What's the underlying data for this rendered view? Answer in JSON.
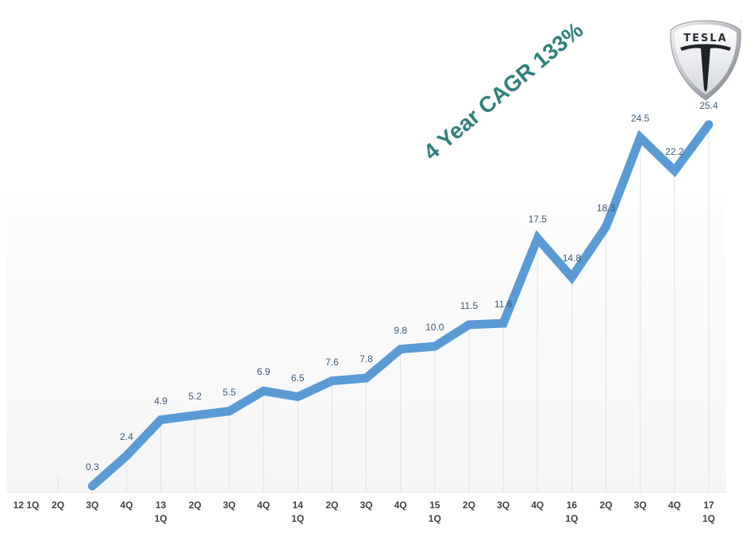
{
  "chart_data": {
    "type": "line",
    "title": "",
    "annotation": "4 Year CAGR 133%",
    "xlabel": "",
    "ylabel": "",
    "grid": "vertical",
    "legend": "none",
    "categories": [
      "12 1Q",
      "2Q",
      "3Q",
      "4Q",
      "13 1Q",
      "2Q",
      "3Q",
      "4Q",
      "14 1Q",
      "2Q",
      "3Q",
      "4Q",
      "15 1Q",
      "2Q",
      "3Q",
      "4Q",
      "16 1Q",
      "2Q",
      "3Q",
      "4Q",
      "17 1Q"
    ],
    "tick_labels": [
      {
        "top": "12 1Q",
        "bottom": ""
      },
      {
        "top": "2Q",
        "bottom": ""
      },
      {
        "top": "3Q",
        "bottom": ""
      },
      {
        "top": "4Q",
        "bottom": ""
      },
      {
        "top": "13",
        "bottom": "1Q"
      },
      {
        "top": "2Q",
        "bottom": ""
      },
      {
        "top": "3Q",
        "bottom": ""
      },
      {
        "top": "4Q",
        "bottom": ""
      },
      {
        "top": "14",
        "bottom": "1Q"
      },
      {
        "top": "2Q",
        "bottom": ""
      },
      {
        "top": "3Q",
        "bottom": ""
      },
      {
        "top": "4Q",
        "bottom": ""
      },
      {
        "top": "15",
        "bottom": "1Q"
      },
      {
        "top": "2Q",
        "bottom": ""
      },
      {
        "top": "3Q",
        "bottom": ""
      },
      {
        "top": "4Q",
        "bottom": ""
      },
      {
        "top": "16",
        "bottom": "1Q"
      },
      {
        "top": "2Q",
        "bottom": ""
      },
      {
        "top": "3Q",
        "bottom": ""
      },
      {
        "top": "4Q",
        "bottom": ""
      },
      {
        "top": "17",
        "bottom": "1Q"
      }
    ],
    "series": [
      {
        "name": "Tesla",
        "color": "#5b9bd5",
        "values": [
          null,
          null,
          0.3,
          2.4,
          4.9,
          5.2,
          5.5,
          6.9,
          6.5,
          7.6,
          7.8,
          9.8,
          10.0,
          11.5,
          11.6,
          17.5,
          14.8,
          18.3,
          24.5,
          22.2,
          25.4
        ],
        "data_labels": [
          null,
          null,
          "0.3",
          "2.4",
          "4.9",
          "5.2",
          "5.5",
          "6.9",
          "6.5",
          "7.6",
          "7.8",
          "9.8",
          "10.0",
          "11.5",
          "11.6",
          "17.5",
          "14.8",
          "18.3",
          "24.5",
          "22.2",
          "25.4"
        ]
      }
    ],
    "ylim": [
      0,
      27
    ]
  },
  "logo": {
    "text": "TESLA",
    "trademark": "™"
  },
  "colors": {
    "line": "#5b9bd5",
    "annotation": "#2e8079",
    "data_label": "#3d5a78",
    "axis_label": "#404040",
    "grid": "#e2e2e2"
  }
}
